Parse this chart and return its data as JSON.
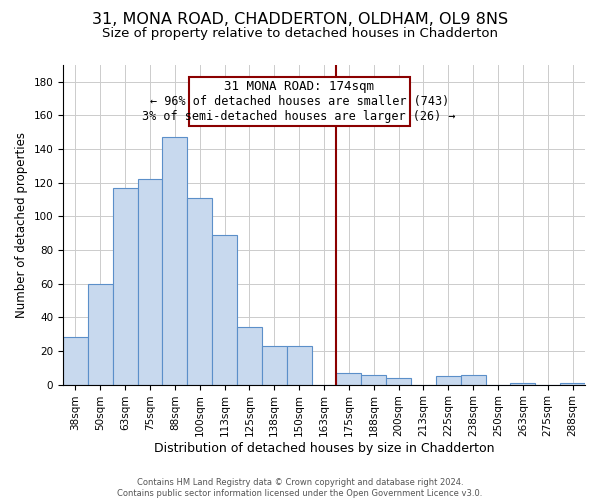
{
  "title": "31, MONA ROAD, CHADDERTON, OLDHAM, OL9 8NS",
  "subtitle": "Size of property relative to detached houses in Chadderton",
  "xlabel": "Distribution of detached houses by size in Chadderton",
  "ylabel": "Number of detached properties",
  "footer_line1": "Contains HM Land Registry data © Crown copyright and database right 2024.",
  "footer_line2": "Contains public sector information licensed under the Open Government Licence v3.0.",
  "bar_labels": [
    "38sqm",
    "50sqm",
    "63sqm",
    "75sqm",
    "88sqm",
    "100sqm",
    "113sqm",
    "125sqm",
    "138sqm",
    "150sqm",
    "163sqm",
    "175sqm",
    "188sqm",
    "200sqm",
    "213sqm",
    "225sqm",
    "238sqm",
    "250sqm",
    "263sqm",
    "275sqm",
    "288sqm"
  ],
  "bar_values": [
    28,
    60,
    117,
    122,
    147,
    111,
    89,
    34,
    23,
    23,
    0,
    7,
    6,
    4,
    0,
    5,
    6,
    0,
    1,
    0,
    1
  ],
  "bar_color": "#c8d9ee",
  "bar_edge_color": "#5b8fc9",
  "highlight_line_color": "#8b0000",
  "annotation_title": "31 MONA ROAD: 174sqm",
  "annotation_line1": "← 96% of detached houses are smaller (743)",
  "annotation_line2": "3% of semi-detached houses are larger (26) →",
  "annotation_box_color": "#ffffff",
  "annotation_box_edge": "#8b0000",
  "ylim": [
    0,
    190
  ],
  "yticks": [
    0,
    20,
    40,
    60,
    80,
    100,
    120,
    140,
    160,
    180
  ],
  "title_fontsize": 11.5,
  "subtitle_fontsize": 9.5,
  "xlabel_fontsize": 9,
  "ylabel_fontsize": 8.5,
  "tick_fontsize": 7.5,
  "annotation_title_fontsize": 9,
  "annotation_text_fontsize": 8.5
}
